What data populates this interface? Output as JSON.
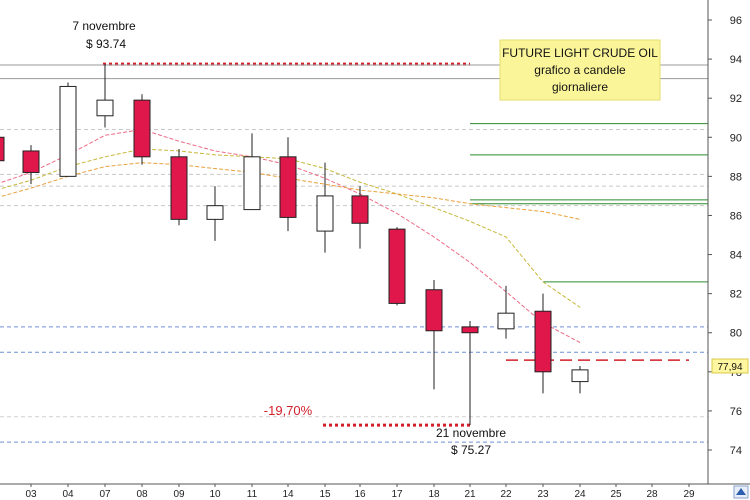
{
  "chart_data": {
    "type": "candlestick",
    "title_lines": [
      "FUTURE LIGHT CRUDE OIL",
      "grafico a candele",
      "giornaliere"
    ],
    "ylim": [
      73,
      97
    ],
    "yticks": [
      74,
      76,
      78,
      80,
      82,
      84,
      86,
      88,
      90,
      92,
      94,
      96
    ],
    "x_labels": [
      "03",
      "04",
      "07",
      "08",
      "09",
      "10",
      "11",
      "14",
      "15",
      "16",
      "17",
      "18",
      "21",
      "22",
      "23",
      "24",
      "25",
      "28",
      "29"
    ],
    "last_price_label": "77,94",
    "last_price": 77.94,
    "candles": [
      {
        "x": "02",
        "open": 90.0,
        "close": 88.8,
        "high": 90.1,
        "low": 88.6
      },
      {
        "x": "03",
        "open": 89.3,
        "close": 88.2,
        "high": 89.6,
        "low": 87.6
      },
      {
        "x": "04",
        "open": 88.0,
        "close": 92.6,
        "high": 92.8,
        "low": 88.0
      },
      {
        "x": "07",
        "open": 91.1,
        "close": 91.9,
        "high": 93.74,
        "low": 90.5
      },
      {
        "x": "08",
        "open": 91.9,
        "close": 89.0,
        "high": 92.2,
        "low": 88.6
      },
      {
        "x": "09",
        "open": 89.0,
        "close": 85.8,
        "high": 89.4,
        "low": 85.5
      },
      {
        "x": "10",
        "open": 85.8,
        "close": 86.5,
        "high": 87.5,
        "low": 84.7
      },
      {
        "x": "11",
        "open": 86.3,
        "close": 89.0,
        "high": 90.2,
        "low": 86.3
      },
      {
        "x": "14",
        "open": 89.0,
        "close": 85.9,
        "high": 90.0,
        "low": 85.2
      },
      {
        "x": "15",
        "open": 85.2,
        "close": 87.0,
        "high": 88.7,
        "low": 84.1
      },
      {
        "x": "16",
        "open": 87.0,
        "close": 85.6,
        "high": 87.5,
        "low": 84.3
      },
      {
        "x": "17",
        "open": 85.3,
        "close": 81.5,
        "high": 85.4,
        "low": 81.4
      },
      {
        "x": "18",
        "open": 82.2,
        "close": 80.1,
        "high": 82.7,
        "low": 77.1
      },
      {
        "x": "21",
        "open": 80.3,
        "close": 80.0,
        "high": 80.6,
        "low": 75.27
      },
      {
        "x": "22",
        "open": 80.2,
        "close": 81.0,
        "high": 82.4,
        "low": 79.7
      },
      {
        "x": "23",
        "open": 81.1,
        "close": 78.0,
        "high": 82.0,
        "low": 76.9
      },
      {
        "x": "24",
        "open": 77.5,
        "close": 78.1,
        "high": 78.3,
        "low": 76.9
      }
    ],
    "moving_averages": [
      {
        "color": "#ee6a86",
        "points": [
          [
            "02",
            87.6
          ],
          [
            "03",
            88.2
          ],
          [
            "04",
            89.1
          ],
          [
            "07",
            90.1
          ],
          [
            "08",
            90.4
          ],
          [
            "09",
            89.8
          ],
          [
            "10",
            89.3
          ],
          [
            "11",
            89.0
          ],
          [
            "14",
            88.6
          ],
          [
            "15",
            87.9
          ],
          [
            "16",
            87.1
          ],
          [
            "17",
            86.1
          ],
          [
            "18",
            84.9
          ],
          [
            "21",
            83.6
          ],
          [
            "22",
            82.1
          ],
          [
            "23",
            80.5
          ],
          [
            "24",
            79.5
          ]
        ]
      },
      {
        "color": "#c7b83a",
        "points": [
          [
            "02",
            87.3
          ],
          [
            "03",
            87.8
          ],
          [
            "04",
            88.5
          ],
          [
            "07",
            89.0
          ],
          [
            "08",
            89.4
          ],
          [
            "09",
            89.3
          ],
          [
            "10",
            89.1
          ],
          [
            "11",
            89.0
          ],
          [
            "14",
            88.9
          ],
          [
            "15",
            88.4
          ],
          [
            "16",
            87.7
          ],
          [
            "17",
            87.1
          ],
          [
            "18",
            86.4
          ],
          [
            "21",
            85.7
          ],
          [
            "22",
            84.9
          ],
          [
            "23",
            82.6
          ],
          [
            "24",
            81.3
          ]
        ]
      },
      {
        "color": "#e9a13c",
        "points": [
          [
            "02",
            86.9
          ],
          [
            "03",
            87.4
          ],
          [
            "04",
            88.0
          ],
          [
            "07",
            88.5
          ],
          [
            "08",
            88.7
          ],
          [
            "09",
            88.6
          ],
          [
            "10",
            88.4
          ],
          [
            "11",
            88.2
          ],
          [
            "14",
            87.9
          ],
          [
            "15",
            87.6
          ],
          [
            "16",
            87.3
          ],
          [
            "17",
            87.1
          ],
          [
            "18",
            86.9
          ],
          [
            "21",
            86.6
          ],
          [
            "22",
            86.4
          ],
          [
            "23",
            86.2
          ],
          [
            "24",
            85.8
          ]
        ]
      }
    ],
    "horizontal_lines": [
      {
        "y": 93.74,
        "style": "dotted",
        "color": "#d21f2a",
        "from": "07",
        "to": "21"
      },
      {
        "y": 75.27,
        "style": "dotted",
        "color": "#d21f2a",
        "from": "15",
        "to": "21"
      },
      {
        "y": 78.6,
        "style": "dashed",
        "color": "#d21f2a",
        "from": "22",
        "to": "29"
      },
      {
        "y": 93.7,
        "style": "solid",
        "color": "#9a9a9a",
        "from": "01",
        "to": "31"
      },
      {
        "y": 93.0,
        "style": "solid",
        "color": "#9a9a9a",
        "from": "01",
        "to": "31"
      },
      {
        "y": 90.4,
        "style": "dashed",
        "color": "#c8c8c8",
        "from": "01",
        "to": "31"
      },
      {
        "y": 88.1,
        "style": "dashed",
        "color": "#c8c8c8",
        "from": "01",
        "to": "31"
      },
      {
        "y": 87.5,
        "style": "dashed",
        "color": "#c8c8c8",
        "from": "01",
        "to": "31"
      },
      {
        "y": 86.5,
        "style": "dashed",
        "color": "#c8c8c8",
        "from": "01",
        "to": "31"
      },
      {
        "y": 90.7,
        "style": "solid",
        "color": "#2e8b2e",
        "from": "21",
        "to": "31"
      },
      {
        "y": 89.1,
        "style": "solid",
        "color": "#2e8b2e",
        "from": "21",
        "to": "31"
      },
      {
        "y": 86.8,
        "style": "solid",
        "color": "#2e8b2e",
        "from": "21",
        "to": "31"
      },
      {
        "y": 86.6,
        "style": "solid",
        "color": "#2e8b2e",
        "from": "21",
        "to": "31"
      },
      {
        "y": 82.6,
        "style": "solid",
        "color": "#2e8b2e",
        "from": "23",
        "to": "31"
      },
      {
        "y": 80.3,
        "style": "dashed",
        "color": "#6f8fd6",
        "from": "01",
        "to": "31"
      },
      {
        "y": 79.0,
        "style": "dashed",
        "color": "#6f8fd6",
        "from": "01",
        "to": "31"
      },
      {
        "y": 74.4,
        "style": "dashed",
        "color": "#6f8fd6",
        "from": "01",
        "to": "31"
      },
      {
        "y": 75.7,
        "style": "dashed",
        "color": "#d0d0d0",
        "from": "01",
        "to": "31"
      }
    ],
    "annotations": {
      "high_date": "7 novembre",
      "high_price": "$ 93.74",
      "low_date": "21 novembre",
      "low_price": "$ 75.27",
      "percent_change": "-19,70%"
    },
    "colors": {
      "bear": "#e0174a",
      "bull": "#ffffff",
      "wick": "#222222",
      "title_box": "#fbf59a"
    }
  }
}
